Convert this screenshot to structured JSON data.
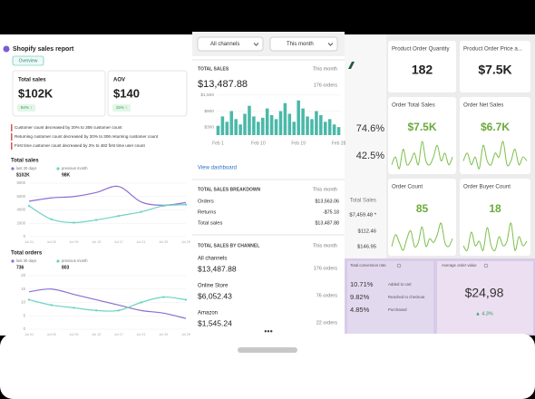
{
  "sales_report": {
    "title": "Shopify sales report",
    "tab": "Overview",
    "kpis": [
      {
        "label": "Total sales",
        "value": "$102K",
        "change": "94% ↑"
      },
      {
        "label": "AOV",
        "value": "$140",
        "change": "15% ↑"
      }
    ],
    "insights": [
      "Customer count decreased by 20% to 306 customer count",
      "Returning customer count decreased by 20% to 306 returning customer count",
      "First time customer count decreased by 2% to 482 first time user count"
    ],
    "charts": [
      {
        "type": "line",
        "title": "Total sales",
        "categories": [
          "Jul 01",
          "Jul 05",
          "Jul 09",
          "Jul 13",
          "Jul 17",
          "Jul 21",
          "Jul 25",
          "Jul 29"
        ],
        "ylim": [
          0,
          8000
        ],
        "yticks": [
          0,
          2000,
          4000,
          6000,
          8000
        ],
        "series": [
          {
            "name": "last 30 days",
            "total": "$102K",
            "color": "#8b6fd1",
            "values": [
              5300,
              5800,
              6000,
              6600,
              7500,
              5200,
              4700,
              5100
            ]
          },
          {
            "name": "previous month",
            "total": "98K",
            "color": "#6fd3c3",
            "values": [
              4600,
              2600,
              2100,
              2500,
              3100,
              3700,
              4600,
              4800
            ]
          }
        ]
      },
      {
        "type": "line",
        "title": "Total orders",
        "categories": [
          "Jul 01",
          "Jul 05",
          "Jul 09",
          "Jul 13",
          "Jul 17",
          "Jul 21",
          "Jul 25",
          "Jul 29"
        ],
        "ylim": [
          0,
          20
        ],
        "yticks": [
          0,
          5,
          10,
          15,
          20
        ],
        "series": [
          {
            "name": "last 30 days",
            "total": "736",
            "color": "#8b6fd1",
            "values": [
              14,
              15,
              13,
              11,
              9,
              7,
              6,
              4
            ]
          },
          {
            "name": "previous month",
            "total": "803",
            "color": "#6fd3c3",
            "values": [
              11,
              9,
              8,
              7,
              7,
              10,
              12,
              11
            ]
          }
        ]
      }
    ]
  },
  "mobile": {
    "filters": [
      "All channels",
      "This month"
    ],
    "total_sales": {
      "title": "TOTAL SALES",
      "period": "This month",
      "value": "$13,487.88",
      "orders": "176 orders",
      "chart": {
        "type": "bar",
        "color": "#4bb8a9",
        "ylim": [
          0,
          1700
        ],
        "yticks": [
          {
            "value": 300,
            "label": "$300"
          },
          {
            "value": 900,
            "label": "$900"
          },
          {
            "value": 1500,
            "label": "$1,500"
          }
        ],
        "categories": [
          "Feb 1",
          null,
          null,
          null,
          null,
          null,
          null,
          null,
          null,
          "Feb 10",
          null,
          null,
          null,
          null,
          null,
          null,
          null,
          null,
          "Feb 19",
          null,
          null,
          null,
          null,
          null,
          null,
          null,
          null,
          "Feb 28"
        ],
        "values": [
          350,
          700,
          500,
          900,
          600,
          400,
          800,
          1100,
          700,
          500,
          650,
          1000,
          750,
          600,
          900,
          1200,
          800,
          500,
          1300,
          1000,
          700,
          600,
          900,
          750,
          500,
          600,
          400,
          300
        ]
      }
    },
    "link": "View dashboard",
    "breakdown": {
      "title": "TOTAL SALES BREAKDOWN",
      "period": "This month",
      "rows": [
        [
          "Orders",
          "$13,563.06"
        ],
        [
          "Returns",
          "-$75.18"
        ],
        [
          "Total sales",
          "$13,487.88"
        ]
      ]
    },
    "channels": {
      "title": "TOTAL SALES BY CHANNEL",
      "period": "This month",
      "rows": [
        {
          "name": "All channels",
          "value": "$13,487.88",
          "orders": "176 orders"
        },
        {
          "name": "Online Store",
          "value": "$6,052.43",
          "orders": "76 orders"
        },
        {
          "name": "Amazon",
          "value": "$1,545.24",
          "orders": "22 orders"
        }
      ]
    }
  },
  "strip": {
    "rates": [
      "74.6%",
      "42.5%"
    ],
    "label": "Total Sales",
    "values": [
      "$7,459.48 *",
      "$112.46",
      "$146.95"
    ]
  },
  "cards": [
    {
      "title": "Product Order Quantity",
      "value": "182"
    },
    {
      "title": "Product Order Price a...",
      "value": "$7.5K"
    },
    {
      "title": "Order Total Sales",
      "value": "$7.5K",
      "trend": [
        3,
        5,
        2,
        7,
        3,
        4,
        6,
        3,
        9,
        4,
        3,
        5,
        8,
        4,
        6,
        3,
        5
      ]
    },
    {
      "title": "Order Net Sales",
      "value": "$6.7K",
      "trend": [
        4,
        6,
        3,
        5,
        2,
        8,
        4,
        3,
        6,
        5,
        9,
        3,
        4,
        7,
        3,
        5,
        4
      ]
    },
    {
      "title": "Order Count",
      "value": "85",
      "trend": [
        3,
        6,
        4,
        2,
        5,
        7,
        3,
        4,
        8,
        3,
        5,
        4,
        6,
        9,
        4,
        3,
        5
      ]
    },
    {
      "title": "Order Buyer Count",
      "value": "18",
      "trend": [
        4,
        3,
        7,
        4,
        5,
        3,
        8,
        4,
        3,
        6,
        4,
        5,
        9,
        3,
        6,
        4,
        5
      ]
    }
  ],
  "conversion": {
    "title": "Total conversion rate",
    "steps": [
      {
        "rate": "10.71%",
        "label": "Added to cart"
      },
      {
        "rate": "9.82%",
        "label": "Reached to checkout"
      },
      {
        "rate": "4.85%",
        "label": "Purchased"
      }
    ]
  },
  "aov": {
    "title": "Average order value",
    "value": "$24,98",
    "change": "▲ 4.3%"
  }
}
